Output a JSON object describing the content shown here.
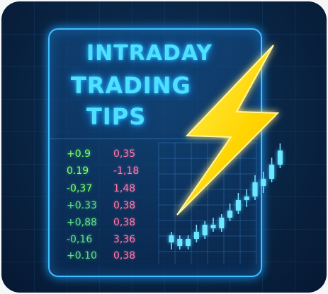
{
  "title": {
    "line1": "INTRADAY",
    "line2": "TRADING",
    "line3": "TIPS"
  },
  "rows": [
    {
      "a": "+0.9",
      "b": "0,35"
    },
    {
      "a": "0.19",
      "b": "-1,18"
    },
    {
      "a": "-0,37",
      "b": "1,48"
    },
    {
      "a": "+0.33",
      "b": "0,38"
    },
    {
      "a": "+0,88",
      "b": "0,38"
    },
    {
      "a": "-0,16",
      "b": "3,36"
    },
    {
      "a": "+0.10",
      "b": "0,38"
    }
  ],
  "colors": {
    "neon_blue": "#4fe0ff",
    "bolt_yellow": "#ffe11a",
    "green": "#7dff6a",
    "pink": "#ff7aa8"
  },
  "candles": [
    {
      "o": 3,
      "c": 5,
      "h": 6,
      "l": 1
    },
    {
      "o": 4,
      "c": 2,
      "h": 5,
      "l": 1
    },
    {
      "o": 2,
      "c": 4,
      "h": 5,
      "l": 1
    },
    {
      "o": 4,
      "c": 6,
      "h": 8,
      "l": 3
    },
    {
      "o": 5,
      "c": 8,
      "h": 9,
      "l": 4
    },
    {
      "o": 8,
      "c": 7,
      "h": 10,
      "l": 6
    },
    {
      "o": 7,
      "c": 10,
      "h": 11,
      "l": 6
    },
    {
      "o": 10,
      "c": 12,
      "h": 14,
      "l": 9
    },
    {
      "o": 12,
      "c": 15,
      "h": 17,
      "l": 11
    },
    {
      "o": 15,
      "c": 16,
      "h": 18,
      "l": 13
    },
    {
      "o": 16,
      "c": 20,
      "h": 22,
      "l": 15
    },
    {
      "o": 19,
      "c": 21,
      "h": 23,
      "l": 17
    },
    {
      "o": 21,
      "c": 25,
      "h": 27,
      "l": 20
    },
    {
      "o": 25,
      "c": 29,
      "h": 31,
      "l": 24
    }
  ]
}
